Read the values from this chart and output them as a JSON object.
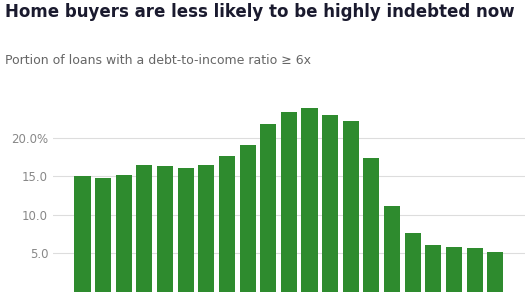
{
  "title": "Home buyers are less likely to be highly indebted now",
  "subtitle": "Portion of loans with a debt-to-income ratio ≥ 6x",
  "values": [
    15.0,
    14.8,
    15.2,
    16.5,
    16.3,
    16.1,
    16.4,
    17.6,
    19.0,
    21.7,
    23.3,
    23.8,
    22.9,
    22.1,
    17.3,
    11.1,
    7.6,
    6.1,
    5.8,
    5.7,
    5.2
  ],
  "bar_color": "#2e8b2e",
  "background_color": "#ffffff",
  "ylim": [
    0,
    27
  ],
  "yticks": [
    5.0,
    10.0,
    15.0,
    20.0
  ],
  "ytick_labels": [
    "5.0",
    "10.0",
    "15.0",
    "20.0%"
  ],
  "title_fontsize": 12,
  "subtitle_fontsize": 9,
  "tick_fontsize": 8.5
}
